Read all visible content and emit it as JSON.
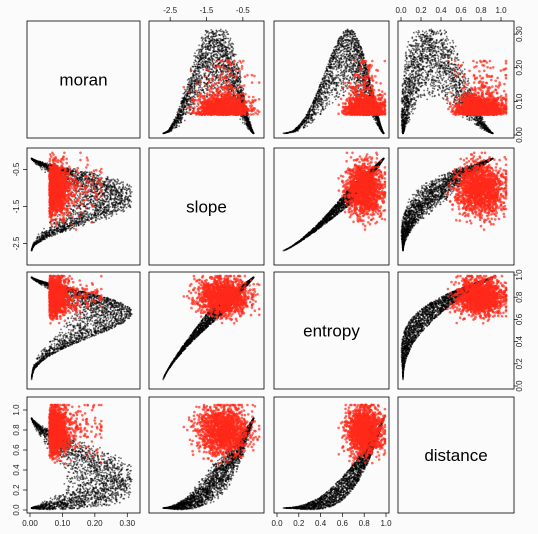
{
  "chart_data": {
    "type": "scatter",
    "layout": "pairs-matrix",
    "variables": [
      "moran",
      "slope",
      "entropy",
      "distance"
    ],
    "series": [
      {
        "color": "#000000"
      },
      {
        "color": "#ff2a1a"
      }
    ],
    "axes": {
      "moran": {
        "range": [
          0.0,
          0.33
        ],
        "ticks": [
          0.0,
          0.1,
          0.2,
          0.3
        ],
        "tick_labels": [
          "0.00",
          "0.10",
          "0.20",
          "0.30"
        ]
      },
      "slope": {
        "range": [
          -3.0,
          0.0
        ],
        "ticks": [
          -2.5,
          -1.5,
          -0.5
        ],
        "tick_labels": [
          "-2.5",
          "-1.5",
          "-0.5"
        ]
      },
      "entropy": {
        "range": [
          0.0,
          1.0
        ],
        "ticks": [
          0.0,
          0.2,
          0.4,
          0.6,
          0.8,
          1.0
        ],
        "tick_labels": [
          "0.0",
          "0.2",
          "0.4",
          "0.6",
          "0.8",
          "1.0"
        ]
      },
      "distance": {
        "range": [
          0.0,
          1.1
        ],
        "ticks": [
          0.0,
          0.2,
          0.4,
          0.6,
          0.8,
          1.0
        ],
        "tick_labels": [
          "0.0",
          "0.2",
          "0.4",
          "0.6",
          "0.8",
          "1.0"
        ]
      }
    },
    "clouds": {
      "moran|slope": {
        "black": {
          "x": [
            0.05,
            0.31
          ],
          "y": [
            -2.9,
            -0.1
          ],
          "shape": "crescent"
        },
        "red": {
          "x_mean": 0.07,
          "y_mean": -1.3
        }
      },
      "moran|entropy": {
        "black": {
          "x": [
            0.0,
            0.32
          ],
          "y": [
            0.05,
            0.95
          ],
          "shape": "crescent"
        },
        "red": {
          "x_mean": 0.05,
          "y_mean": 0.85
        }
      },
      "moran|distance": {
        "black": {
          "x": [
            0.0,
            0.32
          ],
          "y": [
            0.0,
            0.92
          ],
          "shape": "crescent"
        },
        "red": {
          "x_mean": 0.06,
          "y_mean": 0.6
        }
      },
      "slope|entropy": {
        "black": {
          "x": [
            -2.6,
            -0.2
          ],
          "y": [
            0.1,
            1.0
          ],
          "shape": "arc"
        },
        "red": {
          "x_mean": -1.0,
          "y_mean": 0.75
        }
      },
      "slope|distance": {
        "black": {
          "x": [
            -2.6,
            -0.2
          ],
          "y": [
            0.05,
            0.9
          ],
          "shape": "band"
        },
        "red": {
          "x_mean": -1.0,
          "y_mean": 0.82
        }
      },
      "entropy|distance": {
        "black": {
          "x": [
            0.2,
            1.0
          ],
          "y": [
            0.0,
            1.0
          ],
          "shape": "curve"
        },
        "red": {
          "x_mean": 0.85,
          "y_mean": 0.7
        }
      }
    }
  }
}
